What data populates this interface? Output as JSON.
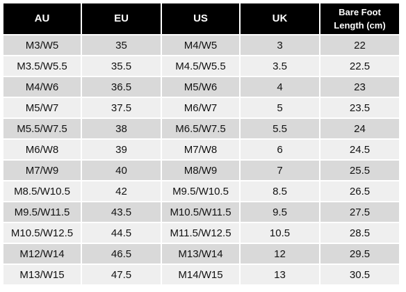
{
  "table": {
    "headers": {
      "au": "AU",
      "eu": "EU",
      "us": "US",
      "uk": "UK",
      "length_line1": "Bare Foot",
      "length_line2": "Length (cm)"
    },
    "rows": [
      {
        "au": "M3/W5",
        "eu": "35",
        "us": "M4/W5",
        "uk": "3",
        "length": "22"
      },
      {
        "au": "M3.5/W5.5",
        "eu": "35.5",
        "us": "M4.5/W5.5",
        "uk": "3.5",
        "length": "22.5"
      },
      {
        "au": "M4/W6",
        "eu": "36.5",
        "us": "M5/W6",
        "uk": "4",
        "length": "23"
      },
      {
        "au": "M5/W7",
        "eu": "37.5",
        "us": "M6/W7",
        "uk": "5",
        "length": "23.5"
      },
      {
        "au": "M5.5/W7.5",
        "eu": "38",
        "us": "M6.5/W7.5",
        "uk": "5.5",
        "length": "24"
      },
      {
        "au": "M6/W8",
        "eu": "39",
        "us": "M7/W8",
        "uk": "6",
        "length": "24.5"
      },
      {
        "au": "M7/W9",
        "eu": "40",
        "us": "M8/W9",
        "uk": "7",
        "length": "25.5"
      },
      {
        "au": "M8.5/W10.5",
        "eu": "42",
        "us": "M9.5/W10.5",
        "uk": "8.5",
        "length": "26.5"
      },
      {
        "au": "M9.5/W11.5",
        "eu": "43.5",
        "us": "M10.5/W11.5",
        "uk": "9.5",
        "length": "27.5"
      },
      {
        "au": "M10.5/W12.5",
        "eu": "44.5",
        "us": "M11.5/W12.5",
        "uk": "10.5",
        "length": "28.5"
      },
      {
        "au": "M12/W14",
        "eu": "46.5",
        "us": "M13/W14",
        "uk": "12",
        "length": "29.5"
      },
      {
        "au": "M13/W15",
        "eu": "47.5",
        "us": "M14/W15",
        "uk": "13",
        "length": "30.5"
      }
    ]
  },
  "colors": {
    "header_bg": "#000000",
    "header_text": "#ffffff",
    "row_odd_bg": "#d9d9d9",
    "row_even_bg": "#efefef"
  }
}
